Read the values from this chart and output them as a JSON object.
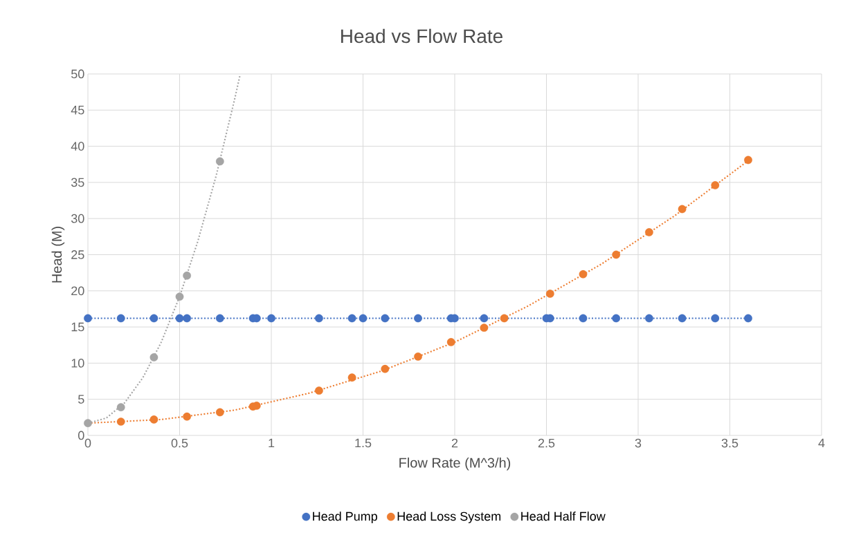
{
  "chart_data": {
    "type": "scatter",
    "title": "Head vs Flow Rate",
    "xlabel": "Flow Rate (M^3/h)",
    "ylabel": "Head (M)",
    "xlim": [
      0,
      4
    ],
    "ylim": [
      0,
      50
    ],
    "xticks": [
      0,
      0.5,
      1,
      1.5,
      2,
      2.5,
      3,
      3.5,
      4
    ],
    "yticks": [
      0,
      5,
      10,
      15,
      20,
      25,
      30,
      35,
      40,
      45,
      50
    ],
    "grid": true,
    "legend": "bottom",
    "marker": "circle",
    "series": [
      {
        "name": "Head Pump",
        "color": "#4472c4",
        "x": [
          0,
          0.18,
          0.36,
          0.5,
          0.54,
          0.72,
          0.9,
          0.92,
          1.0,
          1.26,
          1.44,
          1.5,
          1.62,
          1.8,
          1.98,
          2.0,
          2.16,
          2.5,
          2.52,
          2.7,
          2.88,
          3.06,
          3.24,
          3.42,
          3.6
        ],
        "values": [
          16.2,
          16.2,
          16.2,
          16.2,
          16.2,
          16.2,
          16.2,
          16.2,
          16.2,
          16.2,
          16.2,
          16.2,
          16.2,
          16.2,
          16.2,
          16.2,
          16.2,
          16.2,
          16.2,
          16.2,
          16.2,
          16.2,
          16.2,
          16.2,
          16.2
        ]
      },
      {
        "name": "Head Loss System",
        "color": "#ed7d31",
        "x": [
          0.18,
          0.36,
          0.54,
          0.72,
          0.9,
          0.92,
          1.26,
          1.44,
          1.62,
          1.8,
          1.98,
          2.16,
          2.27,
          2.52,
          2.7,
          2.88,
          3.06,
          3.24,
          3.42,
          3.6
        ],
        "values": [
          1.9,
          2.2,
          2.6,
          3.2,
          4.0,
          4.1,
          6.2,
          8.0,
          9.2,
          10.9,
          12.9,
          14.9,
          16.2,
          19.6,
          22.3,
          25.0,
          28.1,
          31.3,
          34.6,
          38.1
        ]
      },
      {
        "name": "Head Half Flow",
        "color": "#a5a5a5",
        "x": [
          0,
          0.18,
          0.36,
          0.5,
          0.54,
          0.72
        ],
        "values": [
          1.7,
          3.9,
          10.8,
          19.2,
          22.1,
          37.9
        ]
      },
      {
        "type": "line",
        "color": "#4472c4",
        "marker": "none",
        "line_style": "dotted",
        "x": [
          0,
          3.6
        ],
        "values": [
          16.2,
          16.2
        ]
      },
      {
        "type": "line",
        "color": "#ed7d31",
        "marker": "none",
        "line_style": "dotted",
        "x": [
          0,
          0.4,
          0.8,
          1.2,
          1.6,
          2.0,
          2.4,
          2.8,
          3.2,
          3.6
        ],
        "values": [
          1.7,
          2.2,
          3.5,
          5.8,
          8.9,
          12.9,
          17.9,
          23.7,
          30.4,
          38.0
        ]
      },
      {
        "type": "line",
        "color": "#a5a5a5",
        "marker": "none",
        "line_style": "dotted",
        "x": [
          0,
          0.1,
          0.2,
          0.3,
          0.4,
          0.5,
          0.6,
          0.7,
          0.8,
          0.83
        ],
        "values": [
          1.7,
          2.4,
          4.5,
          8.0,
          12.9,
          19.2,
          26.9,
          36.0,
          46.5,
          49.9
        ]
      }
    ]
  }
}
